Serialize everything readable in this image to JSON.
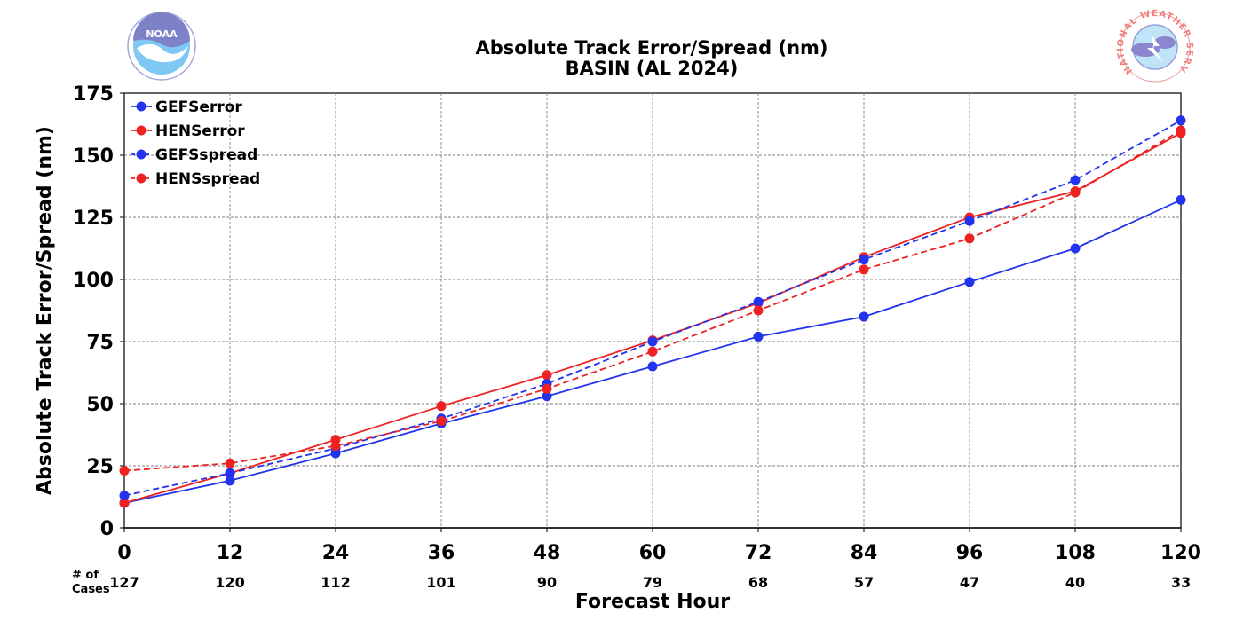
{
  "chart_data": {
    "type": "line",
    "title": "Absolute Track Error/Spread (nm)",
    "subtitle": "BASIN (AL 2024)",
    "xlabel": "Forecast Hour",
    "ylabel": "Absolute Track Error/Spread (nm)",
    "xlim": [
      0,
      120
    ],
    "ylim": [
      0,
      175
    ],
    "x": [
      0,
      12,
      24,
      36,
      48,
      60,
      72,
      84,
      96,
      108,
      120
    ],
    "x_tick_labels": [
      "0",
      "12",
      "24",
      "36",
      "48",
      "60",
      "72",
      "84",
      "96",
      "108",
      "120"
    ],
    "y_tick_labels": [
      "0",
      "25",
      "50",
      "75",
      "100",
      "125",
      "150",
      "175"
    ],
    "y_ticks": [
      0,
      25,
      50,
      75,
      100,
      125,
      150,
      175
    ],
    "grid": true,
    "legend_position": "top-left",
    "cases_label_line1": "# of",
    "cases_label_line2": "Cases",
    "cases": [
      "127",
      "120",
      "112",
      "101",
      "90",
      "79",
      "68",
      "57",
      "47",
      "40",
      "33"
    ],
    "series": [
      {
        "name": "GEFSerror",
        "color": "#2233ee",
        "dashed": false,
        "values": [
          10,
          19,
          30,
          42,
          53,
          65,
          77,
          85,
          99,
          112.5,
          132
        ]
      },
      {
        "name": "HENSerror",
        "color": "#ee2222",
        "dashed": false,
        "values": [
          10,
          22,
          35.5,
          49,
          61.5,
          75.5,
          90.5,
          109,
          125,
          135.5,
          159
        ]
      },
      {
        "name": "GEFSspread",
        "color": "#2233ee",
        "dashed": true,
        "values": [
          13,
          22,
          32,
          44,
          58,
          75,
          91,
          108,
          123.5,
          140,
          164
        ]
      },
      {
        "name": "HENSspread",
        "color": "#ee2222",
        "dashed": true,
        "values": [
          23,
          26,
          33,
          43,
          56,
          71,
          87.5,
          104,
          116.5,
          135,
          160
        ]
      }
    ]
  },
  "logos": {
    "left": "NOAA",
    "right_ring_text": "NATIONAL WEATHER SERVICE"
  }
}
